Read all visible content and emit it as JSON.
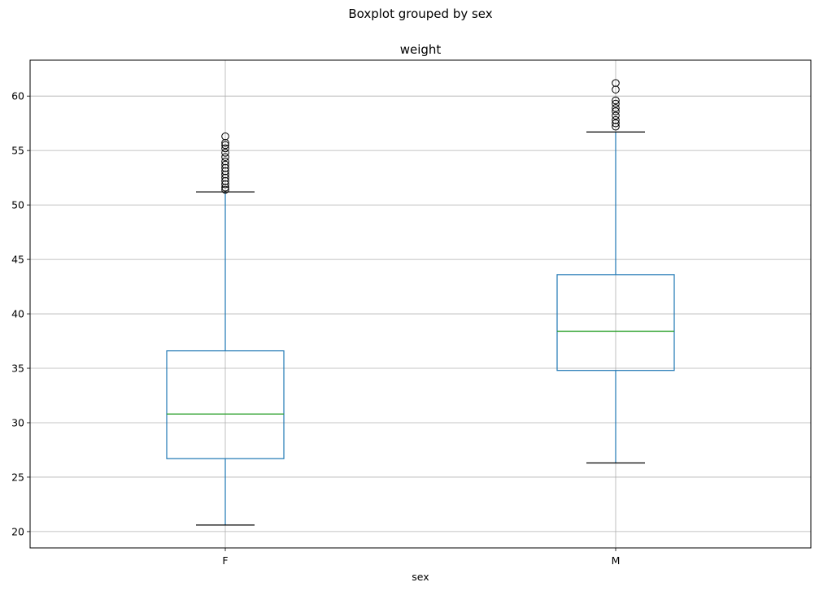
{
  "chart_data": {
    "type": "boxplot",
    "suptitle": "Boxplot grouped by sex",
    "title": "weight",
    "xlabel": "sex",
    "ylabel": "",
    "ylim": [
      18.5,
      63.3
    ],
    "yticks": [
      20,
      25,
      30,
      35,
      40,
      45,
      50,
      55,
      60
    ],
    "grid": true,
    "categories": [
      "F",
      "M"
    ],
    "boxes": [
      {
        "category": "F",
        "whisker_low": 20.6,
        "q1": 26.7,
        "median": 30.8,
        "q3": 36.6,
        "whisker_high": 51.2,
        "outliers": [
          51.4,
          51.6,
          51.9,
          52.2,
          52.5,
          52.8,
          53.1,
          53.4,
          53.7,
          54.0,
          54.4,
          54.8,
          55.2,
          55.5,
          55.7,
          56.3
        ]
      },
      {
        "category": "M",
        "whisker_low": 26.3,
        "q1": 34.8,
        "median": 38.4,
        "q3": 43.6,
        "whisker_high": 56.7,
        "outliers": [
          57.2,
          57.5,
          57.8,
          58.2,
          58.6,
          58.9,
          59.3,
          59.6,
          60.6,
          61.2
        ]
      }
    ],
    "colors": {
      "box": "#1f77b4",
      "median": "#2ca02c",
      "caps": "#000000",
      "grid": "#b0b0b0",
      "flier_edge": "#000000"
    }
  }
}
